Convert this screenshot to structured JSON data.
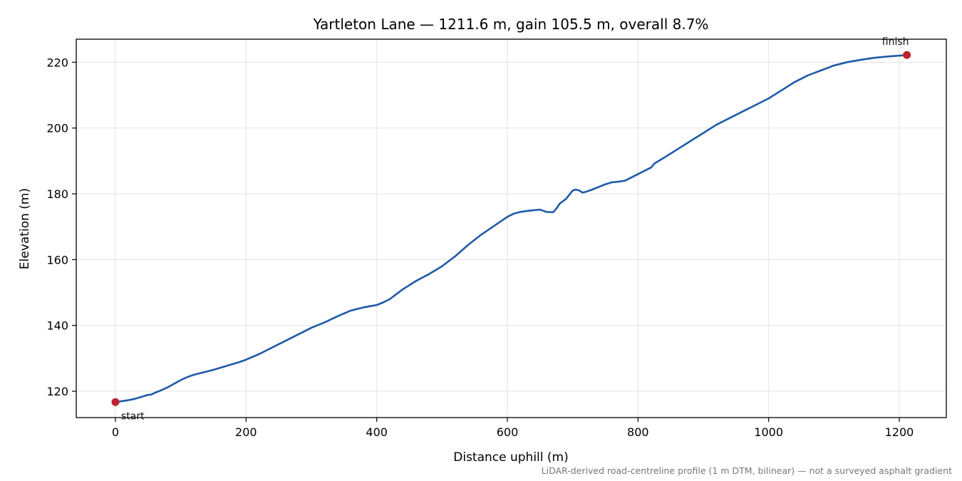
{
  "chart_data": {
    "type": "line",
    "title": "Yartleton Lane — 1211.6 m, gain 105.5 m, overall 8.7%",
    "xlabel": "Distance uphill (m)",
    "ylabel": "Elevation (m)",
    "xlim": [
      -60,
      1272
    ],
    "ylim": [
      112,
      227
    ],
    "xticks": [
      0,
      200,
      400,
      600,
      800,
      1000,
      1200
    ],
    "yticks": [
      120,
      140,
      160,
      180,
      200,
      220
    ],
    "grid": true,
    "footnote": "LiDAR-derived road-centreline profile (1 m DTM, bilinear) — not a surveyed asphalt gradient",
    "colors": {
      "line": "#1f5aa8",
      "marker": "#c0212f",
      "grid": "#e3e3e3"
    },
    "series": [
      {
        "x": [
          0,
          10,
          20,
          30,
          40,
          50,
          55,
          60,
          70,
          80,
          90,
          100,
          110,
          120,
          130,
          140,
          150,
          160,
          170,
          180,
          190,
          200,
          220,
          240,
          260,
          280,
          300,
          320,
          340,
          360,
          380,
          400,
          410,
          420,
          430,
          440,
          460,
          480,
          500,
          520,
          540,
          560,
          580,
          600,
          610,
          620,
          630,
          640,
          650,
          660,
          670,
          675,
          680,
          690,
          700,
          705,
          710,
          715,
          720,
          730,
          740,
          750,
          760,
          770,
          780,
          790,
          800,
          810,
          820,
          825,
          830,
          840,
          860,
          880,
          900,
          920,
          940,
          960,
          980,
          1000,
          1020,
          1040,
          1060,
          1080,
          1100,
          1120,
          1140,
          1160,
          1180,
          1200,
          1211.6
        ],
        "y": [
          116.7,
          117.0,
          117.3,
          117.7,
          118.3,
          118.9,
          119.0,
          119.5,
          120.3,
          121.2,
          122.3,
          123.4,
          124.3,
          125.0,
          125.5,
          126.0,
          126.5,
          127.1,
          127.7,
          128.3,
          128.9,
          129.6,
          131.3,
          133.3,
          135.3,
          137.3,
          139.3,
          140.9,
          142.8,
          144.5,
          145.5,
          146.2,
          147.0,
          148.0,
          149.5,
          151.0,
          153.5,
          155.6,
          158.0,
          161.0,
          164.5,
          167.6,
          170.3,
          173.0,
          174.0,
          174.5,
          174.8,
          175.0,
          175.2,
          174.5,
          174.4,
          175.5,
          177.0,
          178.5,
          181.0,
          181.3,
          181.0,
          180.4,
          180.6,
          181.3,
          182.1,
          182.9,
          183.5,
          183.7,
          184.0,
          185.0,
          186.0,
          187.0,
          188.0,
          189.2,
          189.8,
          191.0,
          193.5,
          196.0,
          198.5,
          201.0,
          203.0,
          205.0,
          207.0,
          209.0,
          211.5,
          214.0,
          216.0,
          217.5,
          219.0,
          220.0,
          220.7,
          221.3,
          221.7,
          222.0,
          222.2
        ]
      }
    ],
    "annotations": [
      {
        "label": "start",
        "x": 0,
        "y": 116.7
      },
      {
        "label": "finish",
        "x": 1211.6,
        "y": 222.2
      }
    ]
  }
}
